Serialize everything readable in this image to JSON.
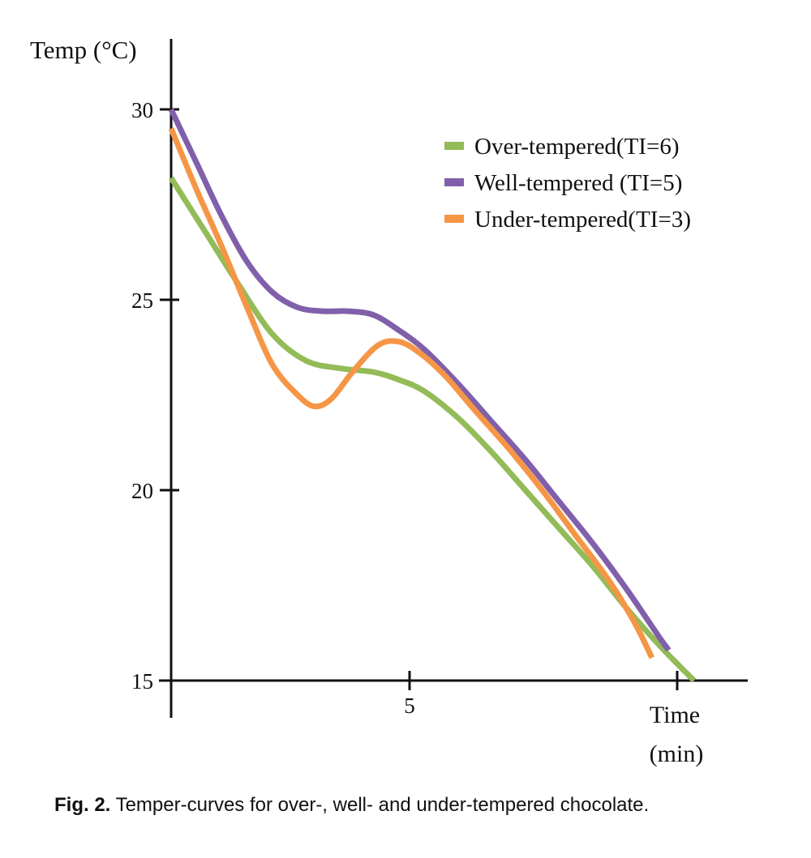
{
  "chart_data": {
    "type": "line",
    "title": "",
    "ylabel": "Temp (°C)",
    "xlabel_line1": "Time",
    "xlabel_line2": "(min)",
    "x_ticks": [
      "",
      "5",
      ""
    ],
    "y_ticks": [
      "15",
      "20",
      "25",
      "30"
    ],
    "xlim": [
      0,
      12
    ],
    "ylim": [
      15,
      31.9
    ],
    "legend_position": "top-right",
    "grid": false,
    "series": [
      {
        "name": "Over-tempered(TI=6)",
        "color": "#93bb58",
        "points": [
          [
            0.0,
            28.2
          ],
          [
            0.8,
            26.8
          ],
          [
            1.6,
            25.4
          ],
          [
            2.4,
            24.1
          ],
          [
            3.2,
            23.4
          ],
          [
            4.0,
            23.2
          ],
          [
            4.8,
            23.1
          ],
          [
            5.4,
            22.9
          ],
          [
            6.0,
            22.6
          ],
          [
            6.8,
            21.9
          ],
          [
            7.6,
            21.0
          ],
          [
            8.4,
            20.0
          ],
          [
            9.2,
            19.0
          ],
          [
            10.0,
            18.0
          ],
          [
            10.8,
            16.9
          ],
          [
            11.6,
            15.9
          ],
          [
            12.4,
            15.0
          ]
        ]
      },
      {
        "name": "Well-tempered (TI=5)",
        "color": "#8060aa",
        "points": [
          [
            0.0,
            30.0
          ],
          [
            0.6,
            28.6
          ],
          [
            1.2,
            27.2
          ],
          [
            1.8,
            26.0
          ],
          [
            2.4,
            25.2
          ],
          [
            3.0,
            24.8
          ],
          [
            3.6,
            24.7
          ],
          [
            4.2,
            24.7
          ],
          [
            4.8,
            24.6
          ],
          [
            5.4,
            24.2
          ],
          [
            6.0,
            23.7
          ],
          [
            6.8,
            22.8
          ],
          [
            7.6,
            21.8
          ],
          [
            8.4,
            20.8
          ],
          [
            9.2,
            19.7
          ],
          [
            10.0,
            18.6
          ],
          [
            10.8,
            17.4
          ],
          [
            11.6,
            16.1
          ],
          [
            11.8,
            15.8
          ]
        ]
      },
      {
        "name": "Under-tempered(TI=3)",
        "color": "#f59646",
        "points": [
          [
            0.0,
            29.5
          ],
          [
            0.6,
            27.9
          ],
          [
            1.2,
            26.4
          ],
          [
            1.8,
            24.8
          ],
          [
            2.4,
            23.3
          ],
          [
            3.0,
            22.5
          ],
          [
            3.4,
            22.2
          ],
          [
            3.8,
            22.4
          ],
          [
            4.3,
            23.1
          ],
          [
            4.9,
            23.8
          ],
          [
            5.4,
            23.9
          ],
          [
            5.9,
            23.6
          ],
          [
            6.5,
            23.0
          ],
          [
            7.2,
            22.1
          ],
          [
            8.0,
            21.1
          ],
          [
            8.8,
            20.0
          ],
          [
            9.6,
            18.8
          ],
          [
            10.4,
            17.6
          ],
          [
            11.0,
            16.5
          ],
          [
            11.4,
            15.6
          ]
        ]
      }
    ]
  },
  "caption": {
    "label": "Fig. 2.",
    "text": " Temper-curves for over-, well- and under-tempered chocolate."
  }
}
